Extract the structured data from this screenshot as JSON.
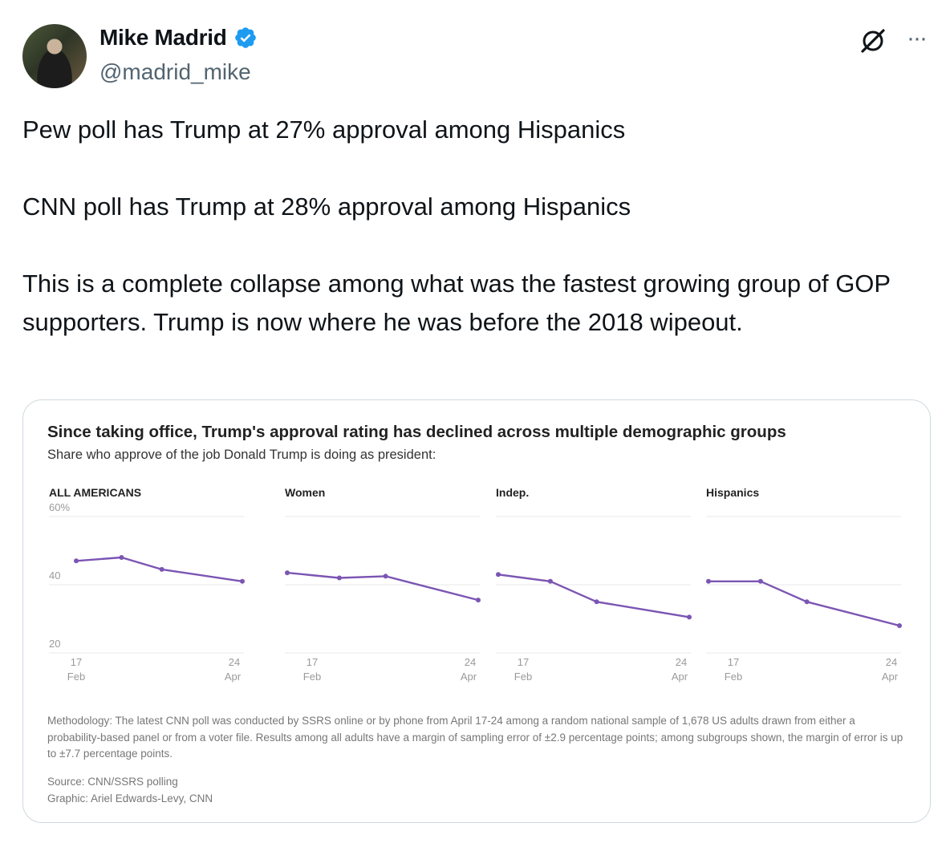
{
  "tweet": {
    "display_name": "Mike Madrid",
    "handle": "@madrid_mike",
    "paragraphs": [
      "Pew poll has Trump at 27% approval among Hispanics",
      "CNN poll has Trump at 28% approval among Hispanics",
      "This is a complete collapse among what was the fastest growing group of GOP supporters. Trump is now where he was before the 2018 wipeout."
    ],
    "icons": {
      "verified": "verified-badge-icon",
      "grok": "grok-icon",
      "more": "more-options-icon",
      "avatar": "avatar"
    },
    "colors": {
      "verified": "#1d9bf0",
      "text": "#0f1419",
      "secondary": "#536471"
    }
  },
  "chart_data": {
    "type": "line",
    "title": "Since taking office, Trump's approval rating has declined across multiple demographic groups",
    "subtitle": "Share who approve of the job Donald Trump is doing as president:",
    "y_tick_labels": [
      "60%",
      "40",
      "20"
    ],
    "ylim": [
      20,
      60
    ],
    "x_tick_start": {
      "day": "17",
      "month": "Feb"
    },
    "x_tick_end": {
      "day": "24",
      "month": "Apr"
    },
    "x": [
      "2025-02-17",
      "2025-03-07",
      "2025-03-23",
      "2025-04-24"
    ],
    "line_color": "#7b55b3",
    "grid": true,
    "panels": [
      {
        "name": "ALL AMERICANS",
        "values": [
          47,
          48,
          44.5,
          41
        ]
      },
      {
        "name": "Women",
        "values": [
          43.5,
          42,
          42.5,
          35.5
        ]
      },
      {
        "name": "Indep.",
        "values": [
          43,
          41,
          35,
          30.5
        ]
      },
      {
        "name": "Hispanics",
        "values": [
          41,
          41,
          35,
          28
        ]
      }
    ],
    "methodology": "Methodology: The latest CNN poll was conducted by SSRS online or by phone from April 17-24 among a random national sample of 1,678 US adults drawn from either a probability-based panel or from a voter file. Results among all adults have a margin of sampling error of ±2.9 percentage points; among subgroups shown, the margin of error is up to ±7.7 percentage points.",
    "source": "Source: CNN/SSRS polling",
    "credit": "Graphic: Ariel Edwards-Levy, CNN"
  }
}
